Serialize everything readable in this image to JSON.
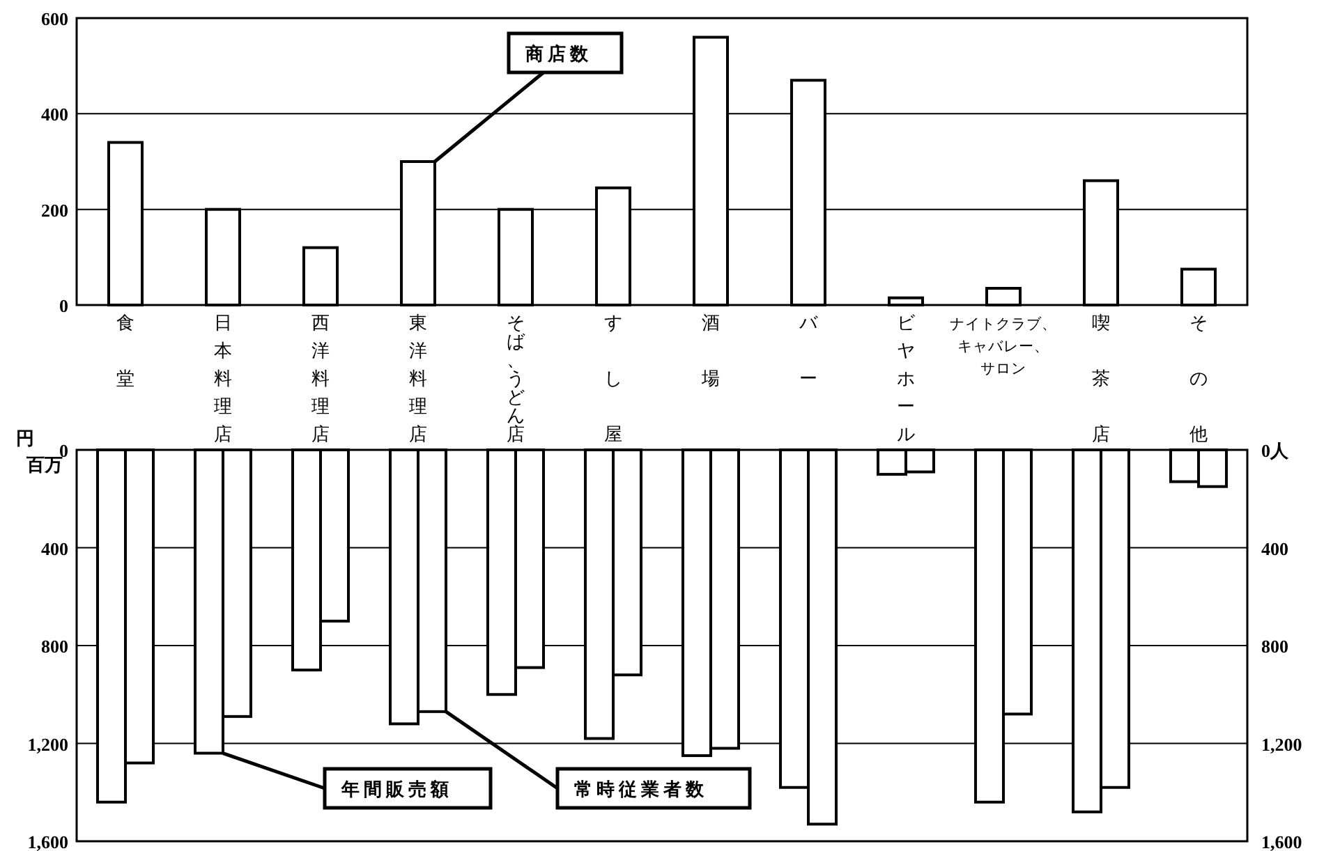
{
  "chart_data": [
    {
      "type": "bar",
      "categories": [
        "食堂",
        "日本料理店",
        "西洋料理店",
        "東洋料理店",
        "そば、うどん店",
        "すし屋",
        "酒場",
        "バー",
        "ビヤホール",
        "ナイトクラブ、キャバレー、サロン",
        "喫茶店",
        "その他"
      ],
      "series": [
        {
          "name": "商店数",
          "color": "#ffffff",
          "values": [
            340,
            200,
            120,
            300,
            200,
            245,
            560,
            470,
            15,
            35,
            260,
            75
          ]
        }
      ],
      "ylim": [
        0,
        600
      ],
      "yticks": [
        0,
        200,
        400,
        600
      ],
      "grid": "y"
    },
    {
      "type": "bar",
      "categories": [
        "食堂",
        "日本料理店",
        "西洋料理店",
        "東洋料理店",
        "そば、うどん店",
        "すし屋",
        "酒場",
        "バー",
        "ビヤホール",
        "ナイトクラブ、キャバレー、サロン",
        "喫茶店",
        "その他"
      ],
      "series": [
        {
          "name": "年間販売額",
          "color": "#ffffff",
          "values": [
            1440,
            1240,
            900,
            1120,
            1000,
            1180,
            1250,
            1380,
            100,
            1440,
            1480,
            130
          ]
        },
        {
          "name": "常時従業者数",
          "color": "#ffffff",
          "axis": "y2",
          "values": [
            1280,
            1090,
            700,
            1070,
            890,
            920,
            1220,
            1530,
            90,
            1080,
            1380,
            150
          ]
        }
      ],
      "ylabel": "円百万",
      "ylim": [
        1600,
        0
      ],
      "yticks": [
        0,
        400,
        800,
        {
          "value": 1200,
          "label": "1,200"
        },
        {
          "value": 1600,
          "label": "1,600"
        }
      ],
      "y2lim": [
        1600,
        0
      ],
      "y2ticks": [
        {
          "value": 0,
          "label": "0人"
        },
        400,
        800,
        {
          "value": 1200,
          "label": "1,200"
        },
        {
          "value": 1600,
          "label": "1,600"
        }
      ],
      "grid": "y",
      "tick_labels": "y"
    }
  ]
}
